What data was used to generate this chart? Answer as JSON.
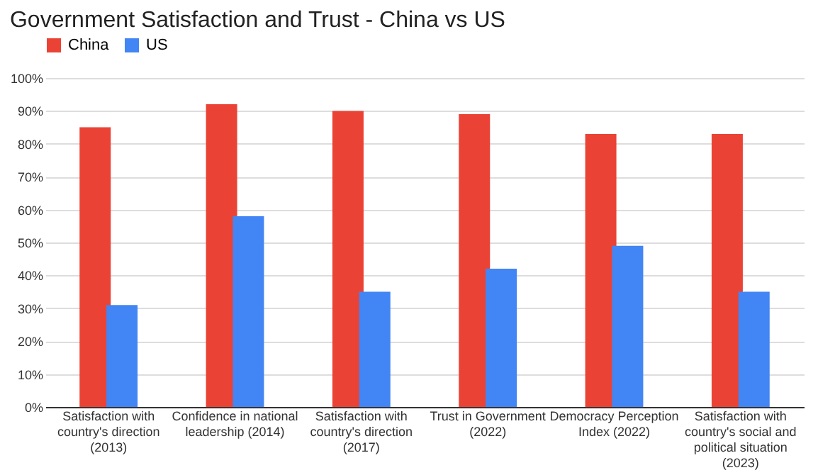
{
  "chart_data": {
    "type": "bar",
    "title": "Government Satisfaction and Trust - China vs US",
    "categories": [
      "Satisfaction with country's direction (2013)",
      "Confidence in national leadership (2014)",
      "Satisfaction with country's direction (2017)",
      "Trust in Government (2022)",
      "Democracy Perception Index (2022)",
      "Satisfaction with country's social and political situation (2023)"
    ],
    "series": [
      {
        "name": "China",
        "color": "#ea4335",
        "values": [
          85,
          92,
          90,
          89,
          83,
          83
        ]
      },
      {
        "name": "US",
        "color": "#4285f4",
        "values": [
          31,
          58,
          35,
          42,
          49,
          35
        ]
      }
    ],
    "ylim": [
      0,
      100
    ],
    "yticks": [
      {
        "value": 0,
        "label": "0%"
      },
      {
        "value": 10,
        "label": "10%"
      },
      {
        "value": 20,
        "label": "20%"
      },
      {
        "value": 30,
        "label": "30%"
      },
      {
        "value": 40,
        "label": "40%"
      },
      {
        "value": 50,
        "label": "50%"
      },
      {
        "value": 60,
        "label": "60%"
      },
      {
        "value": 70,
        "label": "70%"
      },
      {
        "value": 80,
        "label": "80%"
      },
      {
        "value": 90,
        "label": "90%"
      },
      {
        "value": 100,
        "label": "100%"
      }
    ],
    "grid": "y",
    "legend": "top"
  }
}
